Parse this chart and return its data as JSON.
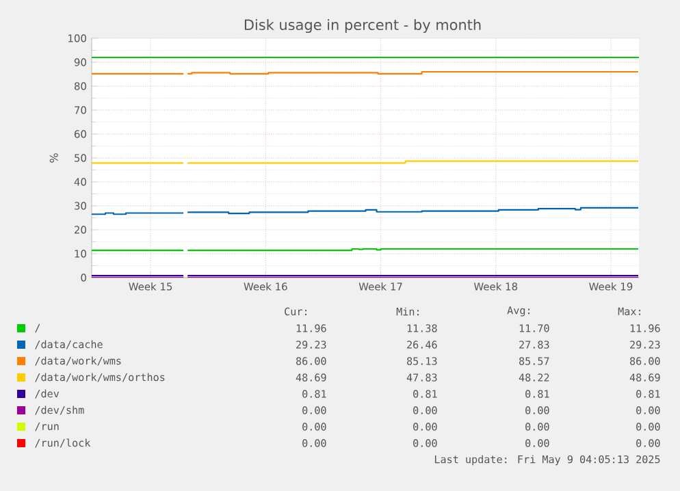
{
  "chart_data": {
    "type": "step",
    "title": "Disk usage in percent - by month",
    "ylabel": "%",
    "xlim": [
      "2025-04-06T00:00",
      "2025-05-09T07:00"
    ],
    "ylim": [
      0,
      100
    ],
    "xticks": [
      {
        "value": "2025-04-09T14:00",
        "label": "Week 15"
      },
      {
        "value": "2025-04-16T14:00",
        "label": "Week 16"
      },
      {
        "value": "2025-04-23T14:00",
        "label": "Week 17"
      },
      {
        "value": "2025-04-30T14:00",
        "label": "Week 18"
      },
      {
        "value": "2025-05-07T14:00",
        "label": "Week 19"
      }
    ],
    "yticks": [
      0,
      10,
      20,
      30,
      40,
      50,
      60,
      70,
      80,
      90,
      100
    ],
    "grid": true,
    "legend": "bottom",
    "ref_lines": [
      {
        "axis": "y",
        "value": 92,
        "color": "#00cc00"
      }
    ],
    "series": [
      {
        "name": "/",
        "color": "#00cc00",
        "x": [
          "2025-04-06T00:00",
          "2025-04-11T14:00",
          "2025-04-11T17:00",
          "2025-04-11T20:00",
          "2025-04-21T20:00",
          "2025-04-22T06:00",
          "2025-04-22T12:00",
          "2025-04-23T08:00",
          "2025-04-23T14:00",
          "2025-05-09T06:00"
        ],
        "values": [
          11.4,
          11.4,
          null,
          11.4,
          12.0,
          11.8,
          12.0,
          11.6,
          12.0,
          12.0
        ]
      },
      {
        "name": "/data/cache",
        "color": "#0066b3",
        "x": [
          "2025-04-06T00:00",
          "2025-04-06T20:00",
          "2025-04-07T08:00",
          "2025-04-08T02:00",
          "2025-04-11T14:00",
          "2025-04-11T17:00",
          "2025-04-11T20:00",
          "2025-04-14T08:00",
          "2025-04-15T14:00",
          "2025-04-19T04:00",
          "2025-04-22T16:00",
          "2025-04-23T08:00",
          "2025-04-26T02:00",
          "2025-04-30T18:00",
          "2025-05-03T04:00",
          "2025-05-05T10:00",
          "2025-05-05T18:00",
          "2025-05-09T06:00"
        ],
        "values": [
          26.5,
          27.0,
          26.5,
          27.0,
          27.0,
          null,
          27.3,
          26.8,
          27.3,
          27.8,
          28.3,
          27.5,
          27.8,
          28.3,
          28.8,
          28.4,
          29.2,
          29.2
        ]
      },
      {
        "name": "/data/work/wms",
        "color": "#ff8000",
        "x": [
          "2025-04-06T00:00",
          "2025-04-11T14:00",
          "2025-04-11T17:00",
          "2025-04-11T20:00",
          "2025-04-12T02:00",
          "2025-04-14T10:00",
          "2025-04-16T18:00",
          "2025-04-23T10:00",
          "2025-04-26T02:00",
          "2025-05-09T06:00"
        ],
        "values": [
          85.2,
          85.2,
          null,
          85.2,
          85.6,
          85.2,
          85.6,
          85.2,
          86.0,
          86.0
        ]
      },
      {
        "name": "/data/work/wms/orthos",
        "color": "#ffcc00",
        "x": [
          "2025-04-06T00:00",
          "2025-04-11T14:00",
          "2025-04-11T17:00",
          "2025-04-11T20:00",
          "2025-04-25T02:00",
          "2025-05-09T06:00"
        ],
        "values": [
          47.9,
          47.9,
          null,
          47.9,
          48.7,
          48.7
        ]
      },
      {
        "name": "/dev",
        "color": "#330099",
        "x": [
          "2025-04-06T00:00",
          "2025-04-11T14:00",
          "2025-04-11T17:00",
          "2025-04-11T20:00",
          "2025-05-09T06:00"
        ],
        "values": [
          0.8,
          0.8,
          null,
          0.8,
          0.8
        ]
      },
      {
        "name": "/dev/shm",
        "color": "#990099",
        "x": [
          "2025-04-06T00:00",
          "2025-04-11T14:00",
          "2025-04-11T17:00",
          "2025-04-11T20:00",
          "2025-05-09T06:00"
        ],
        "values": [
          0,
          0,
          null,
          0,
          0
        ]
      },
      {
        "name": "/run",
        "color": "#ccff00",
        "values": [
          null
        ]
      },
      {
        "name": "/run/lock",
        "color": "#ff0000",
        "values": [
          null
        ]
      }
    ],
    "annotations": [
      "Cur:",
      "Min:",
      "Avg:",
      "Max:",
      "11.96",
      "11.38",
      "11.70",
      "11.96",
      "29.23",
      "26.46",
      "27.83",
      "29.23",
      "86.00",
      "85.13",
      "85.57",
      "86.00",
      "48.69",
      "47.83",
      "48.22",
      "48.69",
      "0.81",
      "0.81",
      "0.81",
      "0.81",
      "0.00",
      "0.00",
      "0.00",
      "0.00",
      "0.00",
      "0.00",
      "0.00",
      "0.00",
      "0.00",
      "0.00",
      "0.00",
      "0.00",
      "Last update: Fri May  9 04:05:13 2025"
    ]
  }
}
